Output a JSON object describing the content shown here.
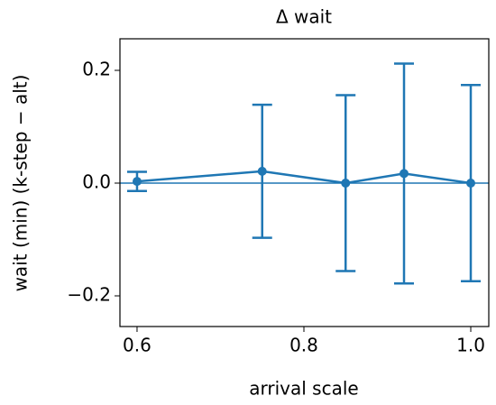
{
  "chart_data": {
    "type": "errorbar-line",
    "title": "Δ wait",
    "xlabel": "arrival scale",
    "ylabel": "wait (min) (k-step − alt)",
    "x": [
      0.6,
      0.75,
      0.85,
      0.92,
      1.0
    ],
    "series": [
      {
        "color": "#1f77b4",
        "values": [
          0.003,
          0.021,
          0.0,
          0.017,
          0.0
        ],
        "errors": [
          0.017,
          0.118,
          0.156,
          0.195,
          0.174
        ]
      }
    ],
    "hlines": [
      0
    ],
    "xlim": [
      0.5795,
      1.0216
    ],
    "ylim": [
      -0.2544,
      0.256
    ],
    "xticks": [
      0.6,
      0.8,
      {
        "value": 1.0,
        "label": "1.0"
      }
    ],
    "yticks": [
      {
        "value": -0.2,
        "label": "−0.2"
      },
      {
        "value": 0,
        "label": "0.0"
      },
      0.2
    ]
  }
}
